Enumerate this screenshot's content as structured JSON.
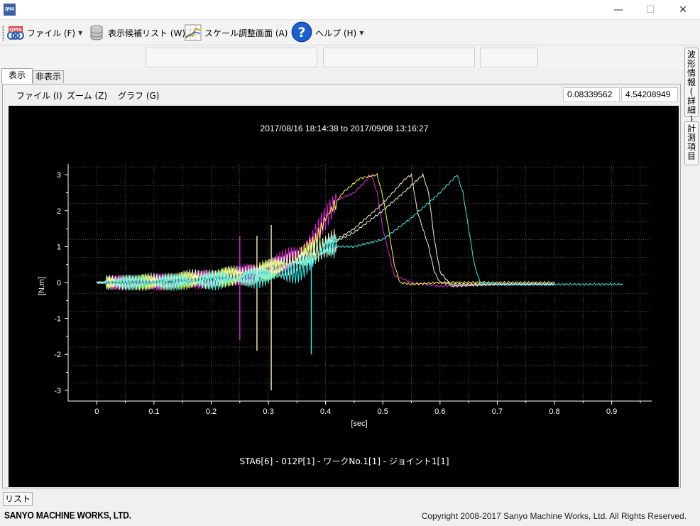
{
  "window": {
    "icon_text": "QM4",
    "minimize": "—",
    "maximize": "☐",
    "close": "✕"
  },
  "menubar": {
    "items": [
      {
        "label": "ファイル (F)",
        "icon": "qms-logo-icon",
        "has_caret": true
      },
      {
        "label": "表示候補リスト (W)",
        "icon": "database-icon",
        "has_caret": false
      },
      {
        "label": "スケール調整画面 (A)",
        "icon": "scale-chart-icon",
        "has_caret": false
      },
      {
        "label": "ヘルプ (H)",
        "icon": "help-icon",
        "has_caret": true
      }
    ]
  },
  "tabs": [
    {
      "label": "表示",
      "active": true
    },
    {
      "label": "非表示",
      "active": false
    }
  ],
  "inner_menu": {
    "file": "ファイル (I)",
    "zoom": "ズーム (Z)",
    "graph": "グラフ (G)"
  },
  "coords": {
    "x": "0.08339562",
    "y": "4.54208949"
  },
  "side_tabs": [
    {
      "label": "波形情報(詳細)"
    },
    {
      "label": "計測項目"
    }
  ],
  "list_button": "リスト",
  "footer": {
    "brand": "SANYO MACHINE WORKS, LTD.",
    "copyright": "Copyright 2008-2017 Sanyo Machine Works, Ltd. All Rights Reserved."
  },
  "chart_data": {
    "type": "line",
    "title": "2017/08/16 18:14:38 to 2017/09/08 13:16:27",
    "subtitle": "STA6[6] - 012P[1] - ワークNo.1[1] - ジョイント1[1]",
    "xlabel": "[sec]",
    "ylabel": "[N.m]",
    "xlim": [
      -0.05,
      0.97
    ],
    "ylim": [
      -3.3,
      3.3
    ],
    "xticks": [
      0,
      0.1,
      0.2,
      0.3,
      0.4,
      0.5,
      0.6,
      0.7,
      0.8,
      0.9
    ],
    "yticks": [
      -3,
      -2,
      -1,
      0,
      1,
      2,
      3
    ],
    "grid": true,
    "background": "#000000",
    "series": [
      {
        "color": "#e020e0",
        "x": [
          0,
          0.05,
          0.1,
          0.15,
          0.2,
          0.25,
          0.3,
          0.35,
          0.38,
          0.4,
          0.42,
          0.45,
          0.48,
          0.49,
          0.5,
          0.52,
          0.55,
          0.6,
          0.7,
          0.8
        ],
        "y": [
          0,
          0,
          0,
          0.05,
          0.1,
          0.2,
          0.4,
          0.8,
          1.3,
          1.8,
          2.3,
          2.5,
          3.0,
          2.5,
          1.5,
          0.2,
          0,
          -0.1,
          -0.05,
          -0.05
        ],
        "spikes": [
          {
            "x": 0.25,
            "top": 1.3,
            "bottom": -1.6
          }
        ]
      },
      {
        "color": "#ffff40",
        "x": [
          0,
          0.05,
          0.1,
          0.15,
          0.2,
          0.25,
          0.3,
          0.35,
          0.38,
          0.4,
          0.43,
          0.46,
          0.49,
          0.5,
          0.51,
          0.52,
          0.53,
          0.55,
          0.6,
          0.7,
          0.8
        ],
        "y": [
          0,
          0,
          0,
          0.05,
          0.1,
          0.2,
          0.35,
          0.6,
          1.0,
          1.8,
          2.5,
          2.9,
          3.0,
          2.4,
          1.5,
          0.5,
          0,
          -0.05,
          0,
          0,
          0
        ],
        "spikes": []
      },
      {
        "color": "#ffe8c0",
        "x": [
          0,
          0.05,
          0.1,
          0.15,
          0.2,
          0.25,
          0.3,
          0.35,
          0.4,
          0.45,
          0.5,
          0.54,
          0.55,
          0.56,
          0.58,
          0.59,
          0.6,
          0.62,
          0.7,
          0.8
        ],
        "y": [
          0,
          0,
          0,
          0.05,
          0.1,
          0.15,
          0.3,
          0.6,
          1.0,
          1.5,
          2.2,
          2.9,
          3.0,
          2.0,
          1.0,
          0.3,
          0,
          -0.05,
          -0.05,
          -0.05
        ],
        "spikes": [
          {
            "x": 0.28,
            "top": 1.3,
            "bottom": -1.9
          },
          {
            "x": 0.305,
            "top": 1.6,
            "bottom": -3.0
          }
        ]
      },
      {
        "color": "#d8ffd0",
        "x": [
          0,
          0.05,
          0.1,
          0.15,
          0.2,
          0.25,
          0.3,
          0.35,
          0.4,
          0.45,
          0.5,
          0.55,
          0.57,
          0.58,
          0.59,
          0.6,
          0.62,
          0.7,
          0.8
        ],
        "y": [
          0,
          0,
          0.05,
          0.1,
          0.15,
          0.2,
          0.35,
          0.6,
          1.0,
          1.4,
          2.0,
          2.7,
          3.0,
          2.5,
          1.2,
          0.3,
          -0.1,
          -0.05,
          -0.05
        ],
        "spikes": []
      },
      {
        "color": "#30f0f0",
        "x": [
          0,
          0.05,
          0.1,
          0.15,
          0.2,
          0.25,
          0.3,
          0.35,
          0.38,
          0.4,
          0.45,
          0.5,
          0.55,
          0.6,
          0.63,
          0.64,
          0.65,
          0.66,
          0.67,
          0.7,
          0.8,
          0.92
        ],
        "y": [
          0,
          0,
          0,
          0.02,
          0.05,
          0.1,
          0.15,
          0.3,
          0.6,
          1.0,
          1.0,
          1.2,
          1.8,
          2.5,
          3.0,
          2.5,
          1.5,
          0.5,
          0,
          -0.05,
          -0.05,
          -0.05
        ],
        "spikes": [
          {
            "x": 0.375,
            "top": 0.8,
            "bottom": -2.0
          }
        ]
      }
    ]
  }
}
